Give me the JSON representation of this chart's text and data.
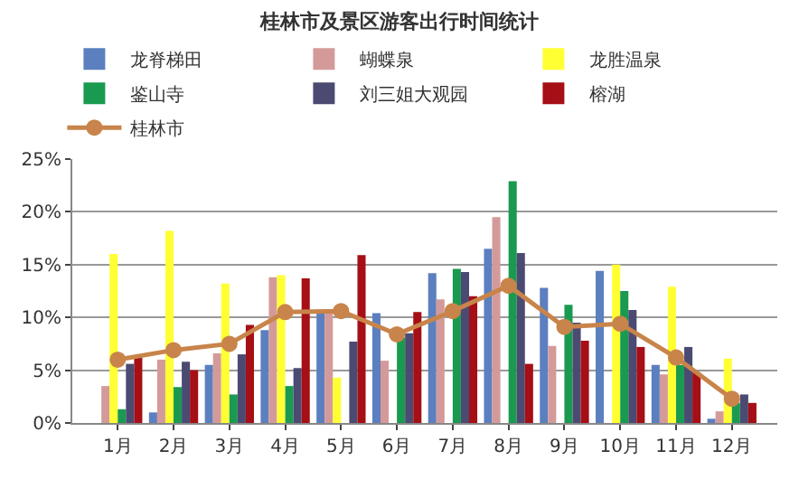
{
  "chart_data": {
    "type": "bar",
    "title": "桂林市及景区游客出行时间统计",
    "categories": [
      "1月",
      "2月",
      "3月",
      "4月",
      "5月",
      "6月",
      "7月",
      "8月",
      "9月",
      "10月",
      "11月",
      "12月"
    ],
    "series": [
      {
        "name": "龙脊梯田",
        "color": "#5b7fbf",
        "values": [
          null,
          1.0,
          5.5,
          8.8,
          10.5,
          10.4,
          14.2,
          16.5,
          12.8,
          14.4,
          5.5,
          0.4
        ]
      },
      {
        "name": "蝴蝶泉",
        "color": "#d49a9a",
        "values": [
          3.5,
          6.0,
          6.6,
          13.8,
          10.5,
          5.9,
          11.7,
          19.5,
          7.3,
          null,
          4.6,
          1.1
        ]
      },
      {
        "name": "龙胜温泉",
        "color": "#ffff33",
        "values": [
          16.0,
          18.2,
          13.2,
          14.0,
          4.3,
          null,
          null,
          null,
          null,
          15.0,
          12.9,
          6.1
        ]
      },
      {
        "name": "鉴山寺",
        "color": "#1a9a50",
        "values": [
          1.3,
          3.4,
          2.7,
          3.5,
          null,
          8.1,
          14.6,
          22.9,
          11.2,
          12.5,
          5.5,
          1.9
        ]
      },
      {
        "name": "刘三姐大观园",
        "color": "#4b4a72",
        "values": [
          5.6,
          5.8,
          6.5,
          5.2,
          7.7,
          8.5,
          14.3,
          16.1,
          9.5,
          10.7,
          7.2,
          2.7
        ]
      },
      {
        "name": "榕湖",
        "color": "#a50f15",
        "values": [
          6.2,
          5.0,
          9.3,
          13.7,
          15.9,
          10.5,
          12.0,
          5.6,
          7.8,
          7.2,
          4.8,
          1.9
        ]
      },
      {
        "name": "桂林市",
        "type": "line",
        "color": "#c8844a",
        "marker": "circle",
        "values": [
          6.0,
          6.9,
          7.5,
          10.5,
          10.6,
          8.4,
          10.6,
          13.0,
          9.1,
          9.4,
          6.2,
          2.3
        ]
      }
    ],
    "ylim": [
      0,
      25
    ],
    "yticks": [
      {
        "value": 0,
        "label": "0%"
      },
      {
        "value": 5,
        "label": "5%"
      },
      {
        "value": 10,
        "label": "10%"
      },
      {
        "value": 15,
        "label": "15%"
      },
      {
        "value": 20,
        "label": "20%"
      },
      {
        "value": 25,
        "label": "25%"
      }
    ],
    "grid": "y",
    "legend": "top"
  }
}
